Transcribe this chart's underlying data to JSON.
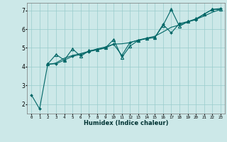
{
  "xlabel": "Humidex (Indice chaleur)",
  "background_color": "#cce8e8",
  "grid_color": "#99cccc",
  "line_color": "#006666",
  "xlim": [
    -0.5,
    23.5
  ],
  "ylim": [
    1.5,
    7.4
  ],
  "yticks": [
    2,
    3,
    4,
    5,
    6,
    7
  ],
  "xtick_labels": [
    "0",
    "1",
    "2",
    "3",
    "4",
    "5",
    "6",
    "7",
    "8",
    "9",
    "10",
    "11",
    "12",
    "13",
    "14",
    "15",
    "16",
    "17",
    "18",
    "19",
    "20",
    "21",
    "22",
    "23"
  ],
  "series1_x": [
    0,
    1,
    2,
    3,
    4,
    5,
    6,
    7,
    8,
    9,
    10,
    11,
    12,
    13,
    14,
    15,
    16,
    17,
    18,
    19,
    20,
    21,
    22,
    23
  ],
  "series1_y": [
    2.5,
    1.75,
    4.15,
    4.15,
    4.35,
    4.55,
    4.65,
    4.8,
    4.9,
    5.0,
    5.2,
    4.6,
    5.3,
    5.4,
    5.5,
    5.55,
    6.25,
    5.8,
    6.3,
    6.4,
    6.5,
    6.8,
    7.05,
    7.1
  ],
  "series2_x": [
    2,
    3,
    4,
    5,
    6,
    7,
    8,
    9,
    10,
    11,
    12,
    13,
    14,
    15,
    16,
    17,
    18,
    19,
    20,
    21,
    22,
    23
  ],
  "series2_y": [
    4.15,
    4.65,
    4.35,
    4.95,
    4.55,
    4.85,
    4.9,
    5.0,
    5.45,
    4.5,
    5.1,
    5.4,
    5.5,
    5.55,
    6.2,
    7.05,
    6.15,
    6.4,
    6.55,
    6.8,
    7.05,
    7.05
  ],
  "series3_x": [
    2,
    3,
    4,
    5,
    6,
    7,
    8,
    9,
    10,
    11,
    12,
    13,
    14,
    15,
    16,
    17,
    18,
    19,
    20,
    21,
    22,
    23
  ],
  "series3_y": [
    4.1,
    4.2,
    4.45,
    4.6,
    4.7,
    4.82,
    4.95,
    5.05,
    5.2,
    5.22,
    5.28,
    5.42,
    5.52,
    5.62,
    5.85,
    6.1,
    6.22,
    6.38,
    6.52,
    6.7,
    6.9,
    7.05
  ]
}
